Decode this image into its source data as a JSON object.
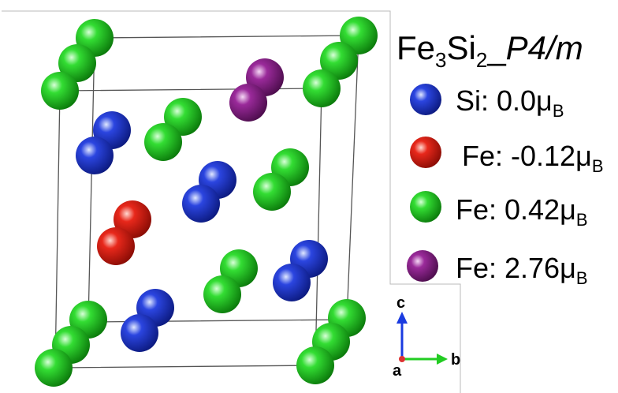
{
  "title": {
    "element1": "Fe",
    "count1": "3",
    "element2": "Si",
    "count2": "2",
    "separator": "_",
    "space_group": "P4/m"
  },
  "legend": [
    {
      "label": "Si: 0.0μ",
      "sub": "B"
    },
    {
      "label": "Fe: -0.12μ",
      "sub": "B"
    },
    {
      "label": "Fe: 0.42μ",
      "sub": "B"
    },
    {
      "label": "Fe: 2.76μ",
      "sub": "B"
    }
  ],
  "axes": {
    "c": "c",
    "b": "b",
    "a": "a"
  }
}
